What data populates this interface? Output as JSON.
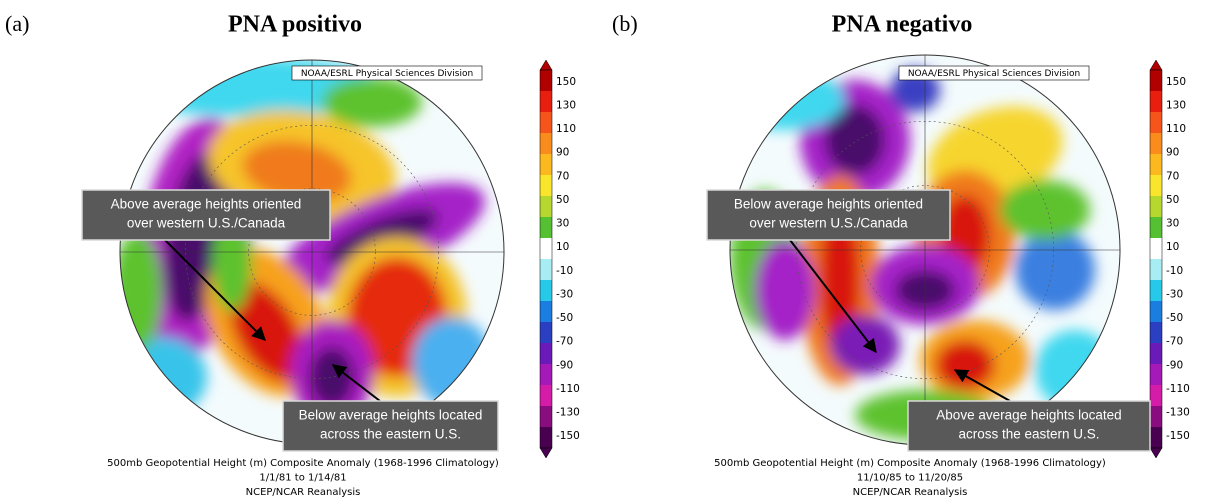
{
  "panels": [
    {
      "label": "(a)",
      "title": "PNA positivo",
      "source": "NOAA/ESRL Physical Sciences Division",
      "annotations": [
        {
          "lines": [
            "Above average heights oriented",
            "over western U.S./Canada"
          ]
        },
        {
          "lines": [
            "Below average heights located",
            "across the eastern U.S."
          ]
        }
      ],
      "caption": [
        "500mb Geopotential Height (m) Composite Anomaly (1968-1996 Climatology)",
        "1/1/81  to 1/14/81",
        "NCEP/NCAR Reanalysis"
      ]
    },
    {
      "label": "(b)",
      "title": "PNA negativo",
      "source": "NOAA/ESRL Physical Sciences Division",
      "annotations": [
        {
          "lines": [
            "Below average heights oriented",
            "over western U.S./Canada"
          ]
        },
        {
          "lines": [
            "Above average heights located",
            "across the eastern U.S."
          ]
        }
      ],
      "caption": [
        "500mb Geopotential Height (m) Composite Anomaly (1968-1996 Climatology)",
        "11/10/85  to 11/20/85",
        "NCEP/NCAR Reanalysis"
      ]
    }
  ],
  "colorbar": {
    "labels": [
      "150",
      "130",
      "110",
      "90",
      "70",
      "50",
      "30",
      "10",
      "-10",
      "-30",
      "-50",
      "-70",
      "-90",
      "-110",
      "-130",
      "-150"
    ]
  }
}
